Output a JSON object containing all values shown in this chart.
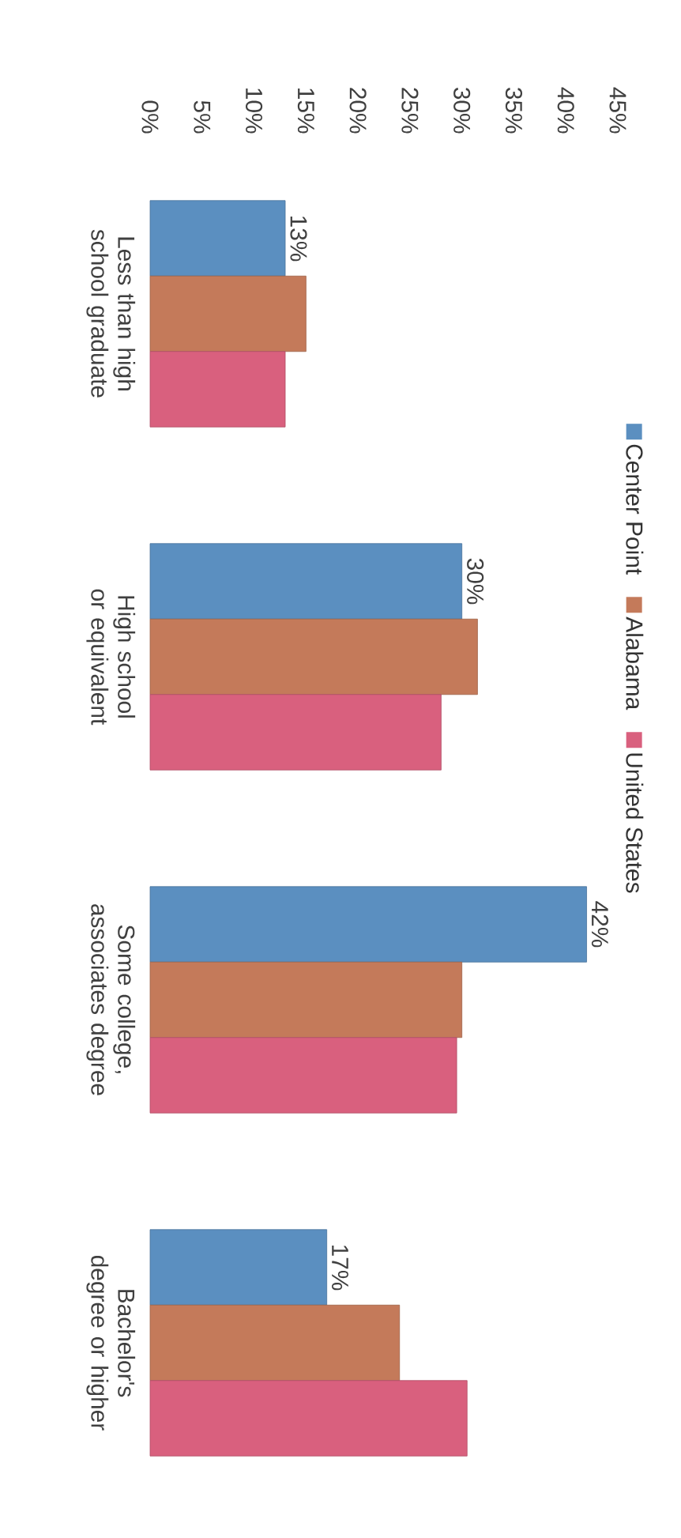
{
  "chart_data": {
    "type": "bar",
    "orientation": "horizontal",
    "categories": [
      "Less than high school graduate",
      "High school or equivalent",
      "Some college, associates degree",
      "Bachelor's degree or higher"
    ],
    "series": [
      {
        "name": "Center Point",
        "color": "#5b8fc0",
        "values": [
          13,
          30,
          42,
          17
        ],
        "value_labels": [
          "13%",
          "30%",
          "42%",
          "17%"
        ]
      },
      {
        "name": "Alabama",
        "color": "#c47a5a",
        "values": [
          15,
          31.5,
          30,
          24
        ]
      },
      {
        "name": "United States",
        "color": "#d9607e",
        "values": [
          13,
          28,
          29.5,
          30.5
        ]
      }
    ],
    "xlim": [
      0,
      45
    ],
    "xticks": [
      {
        "value": 0,
        "label": "0%"
      },
      {
        "value": 5,
        "label": "5%"
      },
      {
        "value": 10,
        "label": "10%"
      },
      {
        "value": 15,
        "label": "15%"
      },
      {
        "value": 20,
        "label": "20%"
      },
      {
        "value": 25,
        "label": "25%"
      },
      {
        "value": 30,
        "label": "30%"
      },
      {
        "value": 35,
        "label": "35%"
      },
      {
        "value": 40,
        "label": "40%"
      },
      {
        "value": 45,
        "label": "45%"
      }
    ],
    "grid": false,
    "legend": "right"
  }
}
